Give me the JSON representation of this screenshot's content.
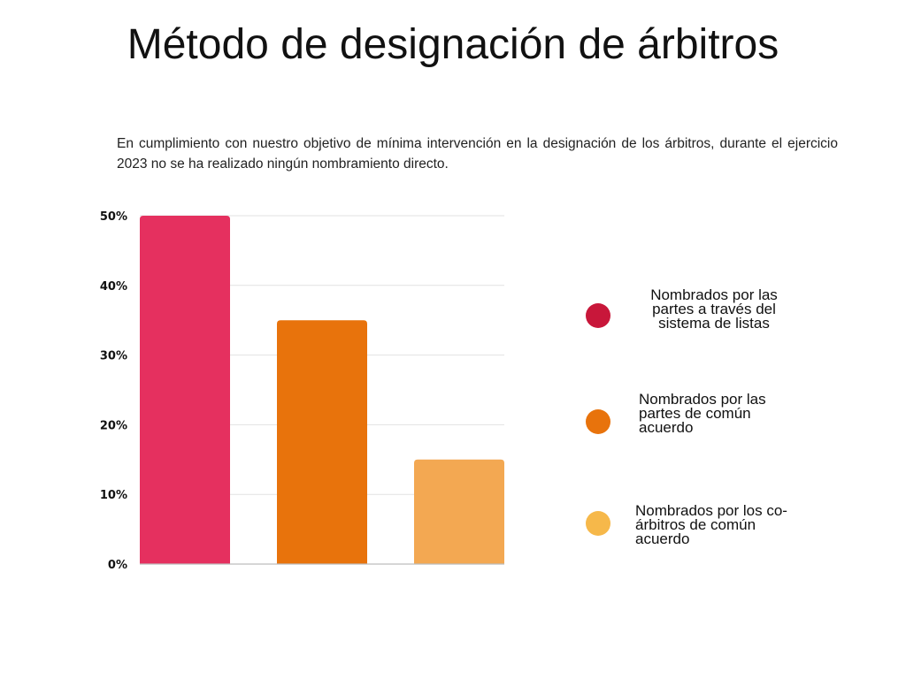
{
  "title": "Método de designación de árbitros",
  "intro": "En cumplimiento con nuestro objetivo de mínima intervención en la designación de los árbitros, durante el ejercicio 2023 no se ha realizado ningún nombramiento directo.",
  "chart_data": {
    "type": "bar",
    "categories": [
      "Nombrados por las partes a través del sistema de listas",
      "Nombrados por las partes de común acuerdo",
      "Nombrados por los co-árbitros de común acuerdo"
    ],
    "values": [
      50,
      35,
      15
    ],
    "bar_colors": [
      "#e5305f",
      "#e8730c",
      "#f3a852"
    ],
    "ylim": [
      0,
      50
    ],
    "yticks": [
      0,
      10,
      20,
      30,
      40,
      50
    ],
    "ytick_labels": [
      "0%",
      "10%",
      "20%",
      "30%",
      "40%",
      "50%"
    ],
    "grid": true,
    "legend": {
      "placement": "right",
      "items": [
        {
          "label": "Nombrados por las partes a través del sistema de listas",
          "color": "#c8173a"
        },
        {
          "label": "Nombrados por las partes de común acuerdo",
          "color": "#e8730c"
        },
        {
          "label": "Nombrados por los co-árbitros de común acuerdo",
          "color": "#f6b84a"
        }
      ]
    }
  }
}
